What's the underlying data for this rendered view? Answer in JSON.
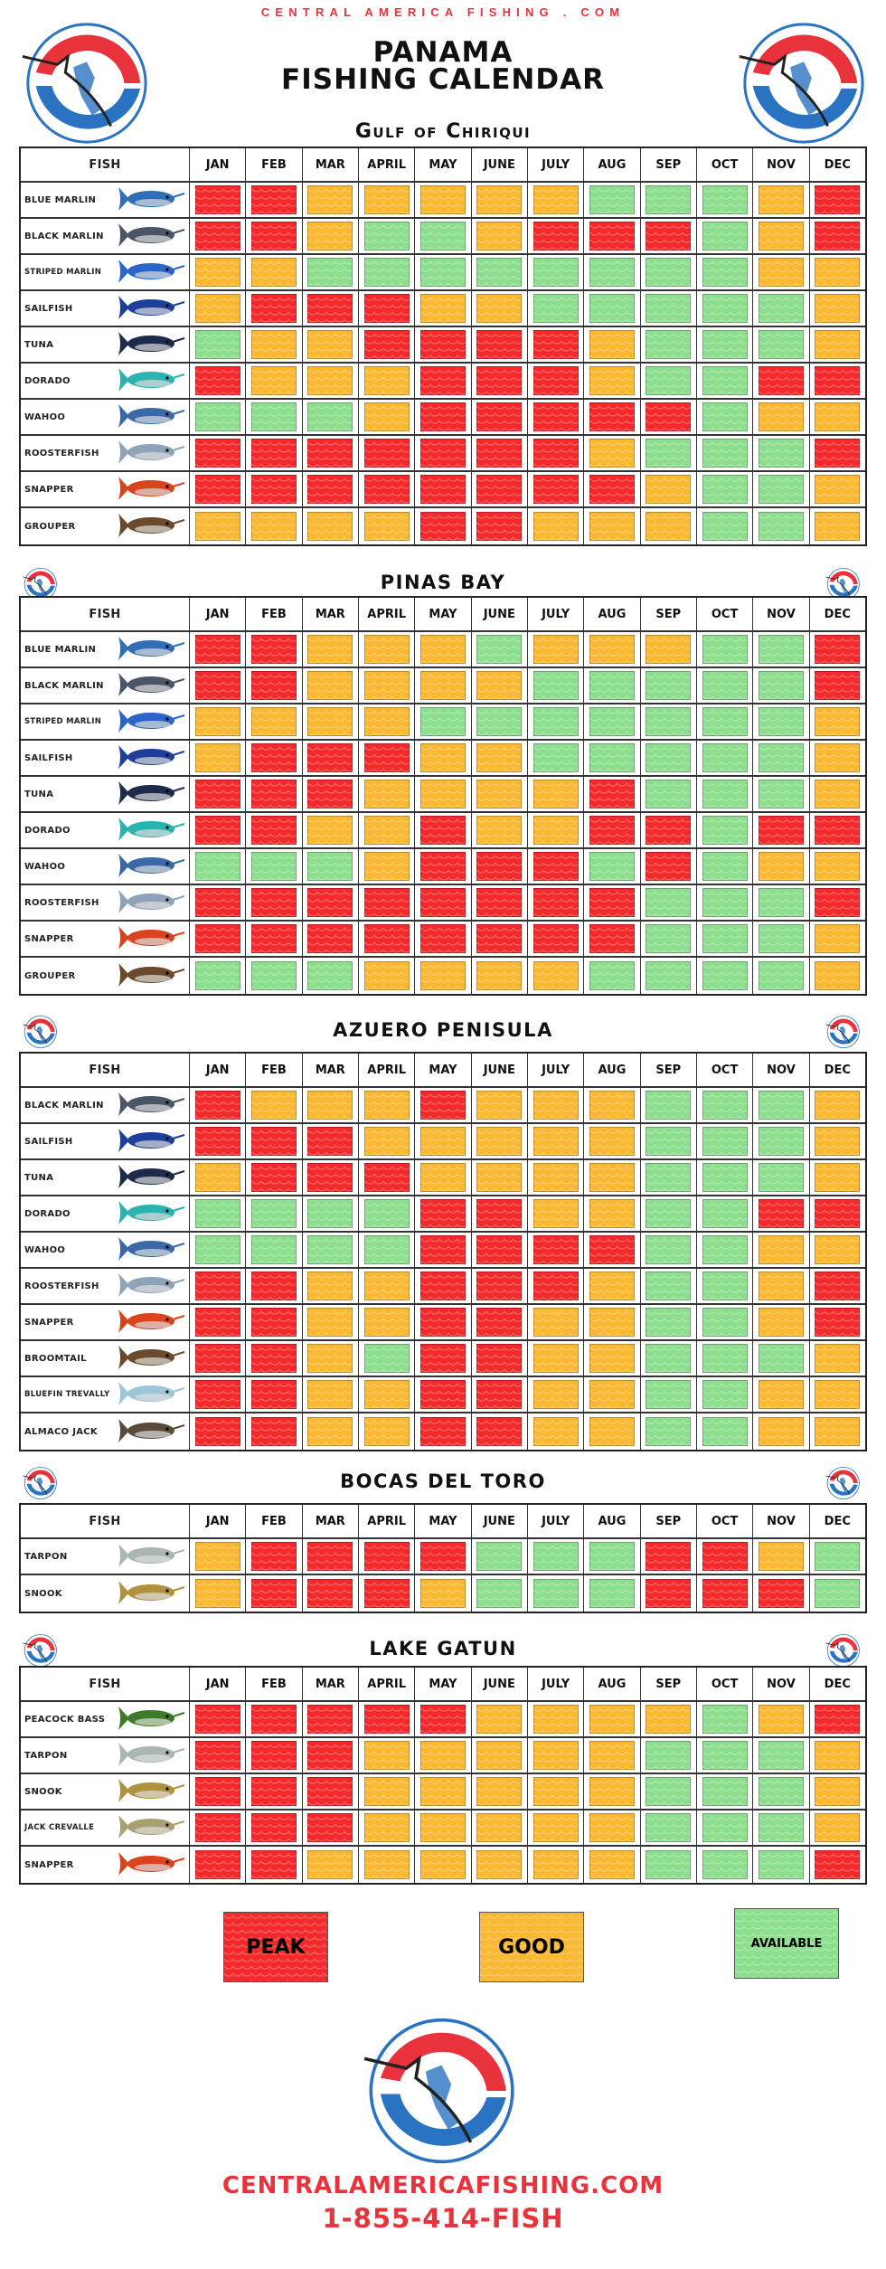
{
  "header": {
    "site": "CENTRAL AMERICA FISHING . COM",
    "title_line1": "PANAMA",
    "title_line2": "FISHING CALENDAR",
    "logo_text": "CENTRAL AMERICA FISHING"
  },
  "colors": {
    "peak": "#f3292b",
    "good": "#fbb833",
    "available": "#8ede8f",
    "brand_red": "#e8323c",
    "brand_blue": "#2a73c2"
  },
  "months": [
    "JAN",
    "FEB",
    "MAR",
    "APRIL",
    "MAY",
    "JUNE",
    "JULY",
    "AUG",
    "SEP",
    "OCT",
    "NOV",
    "DEC"
  ],
  "fish_header": "FISH",
  "fish_colors": {
    "BLUE MARLIN": "#2f6fb8",
    "BLACK MARLIN": "#4a5566",
    "STRIPED MARLIN": "#2a66c9",
    "SAILFISH": "#1e3f99",
    "TUNA": "#1d2a4a",
    "DORADO": "#2bb3b0",
    "WAHOO": "#3b69a8",
    "ROOSTERFISH": "#8fa3b8",
    "SNAPPER": "#d8451c",
    "GROUPER": "#6a4a2a",
    "BROOMTAIL": "#6a4a2a",
    "BLUEFIN TREVALLY": "#9cc6d8",
    "ALMACO JACK": "#5a4a3a",
    "TARPON": "#a9b7b0",
    "SNOOK": "#b0923e",
    "PEACOCK BASS": "#3d7a2a",
    "JACK CREVALLE": "#a8a070"
  },
  "sections": [
    {
      "title": "Gulf of Chiriqui",
      "rows": [
        {
          "fish": "BLUE MARLIN",
          "months": [
            "peak",
            "peak",
            "good",
            "good",
            "good",
            "good",
            "good",
            "available",
            "available",
            "available",
            "good",
            "peak"
          ]
        },
        {
          "fish": "BLACK MARLIN",
          "months": [
            "peak",
            "peak",
            "good",
            "available",
            "available",
            "good",
            "peak",
            "peak",
            "peak",
            "available",
            "good",
            "peak"
          ]
        },
        {
          "fish": "STRIPED MARLIN",
          "months": [
            "good",
            "good",
            "available",
            "available",
            "available",
            "available",
            "available",
            "available",
            "available",
            "available",
            "good",
            "good"
          ]
        },
        {
          "fish": "SAILFISH",
          "months": [
            "good",
            "peak",
            "peak",
            "peak",
            "good",
            "good",
            "available",
            "available",
            "available",
            "available",
            "available",
            "good"
          ]
        },
        {
          "fish": "TUNA",
          "months": [
            "available",
            "good",
            "good",
            "peak",
            "peak",
            "peak",
            "peak",
            "good",
            "available",
            "available",
            "available",
            "good"
          ]
        },
        {
          "fish": "DORADO",
          "months": [
            "peak",
            "good",
            "good",
            "good",
            "peak",
            "peak",
            "peak",
            "good",
            "available",
            "available",
            "peak",
            "peak"
          ]
        },
        {
          "fish": "WAHOO",
          "months": [
            "available",
            "available",
            "available",
            "good",
            "peak",
            "peak",
            "peak",
            "peak",
            "peak",
            "available",
            "good",
            "good"
          ]
        },
        {
          "fish": "ROOSTERFISH",
          "months": [
            "peak",
            "peak",
            "peak",
            "peak",
            "peak",
            "peak",
            "peak",
            "good",
            "available",
            "available",
            "available",
            "peak"
          ]
        },
        {
          "fish": "SNAPPER",
          "months": [
            "peak",
            "peak",
            "peak",
            "peak",
            "peak",
            "peak",
            "peak",
            "peak",
            "good",
            "available",
            "available",
            "good"
          ]
        },
        {
          "fish": "GROUPER",
          "months": [
            "good",
            "good",
            "good",
            "good",
            "peak",
            "peak",
            "good",
            "good",
            "good",
            "available",
            "available",
            "good"
          ]
        }
      ]
    },
    {
      "title": "PINAS BAY",
      "rows": [
        {
          "fish": "BLUE MARLIN",
          "months": [
            "peak",
            "peak",
            "good",
            "good",
            "good",
            "available",
            "good",
            "good",
            "good",
            "available",
            "available",
            "peak"
          ]
        },
        {
          "fish": "BLACK MARLIN",
          "months": [
            "peak",
            "peak",
            "good",
            "good",
            "good",
            "good",
            "available",
            "available",
            "available",
            "available",
            "available",
            "peak"
          ]
        },
        {
          "fish": "STRIPED MARLIN",
          "months": [
            "good",
            "good",
            "good",
            "good",
            "available",
            "available",
            "available",
            "available",
            "available",
            "available",
            "available",
            "good"
          ]
        },
        {
          "fish": "SAILFISH",
          "months": [
            "good",
            "peak",
            "peak",
            "peak",
            "good",
            "good",
            "available",
            "available",
            "available",
            "available",
            "available",
            "good"
          ]
        },
        {
          "fish": "TUNA",
          "months": [
            "peak",
            "peak",
            "peak",
            "good",
            "good",
            "good",
            "good",
            "peak",
            "available",
            "available",
            "available",
            "good"
          ]
        },
        {
          "fish": "DORADO",
          "months": [
            "peak",
            "peak",
            "good",
            "good",
            "peak",
            "good",
            "good",
            "peak",
            "peak",
            "available",
            "peak",
            "peak"
          ]
        },
        {
          "fish": "WAHOO",
          "months": [
            "available",
            "available",
            "available",
            "good",
            "peak",
            "peak",
            "peak",
            "available",
            "peak",
            "available",
            "good",
            "good"
          ]
        },
        {
          "fish": "ROOSTERFISH",
          "months": [
            "peak",
            "peak",
            "peak",
            "peak",
            "peak",
            "peak",
            "peak",
            "peak",
            "available",
            "available",
            "available",
            "peak"
          ]
        },
        {
          "fish": "SNAPPER",
          "months": [
            "peak",
            "peak",
            "peak",
            "peak",
            "peak",
            "peak",
            "peak",
            "peak",
            "available",
            "available",
            "available",
            "good"
          ]
        },
        {
          "fish": "GROUPER",
          "months": [
            "available",
            "available",
            "available",
            "good",
            "good",
            "good",
            "good",
            "available",
            "available",
            "available",
            "available",
            "good"
          ]
        }
      ]
    },
    {
      "title": "AZUERO PENISULA",
      "rows": [
        {
          "fish": "BLACK MARLIN",
          "months": [
            "peak",
            "good",
            "good",
            "good",
            "peak",
            "good",
            "good",
            "good",
            "available",
            "available",
            "available",
            "good"
          ]
        },
        {
          "fish": "SAILFISH",
          "months": [
            "peak",
            "peak",
            "peak",
            "good",
            "good",
            "good",
            "good",
            "good",
            "available",
            "available",
            "available",
            "good"
          ]
        },
        {
          "fish": "TUNA",
          "months": [
            "good",
            "peak",
            "peak",
            "peak",
            "good",
            "good",
            "good",
            "good",
            "available",
            "available",
            "available",
            "good"
          ]
        },
        {
          "fish": "DORADO",
          "months": [
            "available",
            "available",
            "available",
            "available",
            "peak",
            "peak",
            "good",
            "good",
            "available",
            "available",
            "peak",
            "peak"
          ]
        },
        {
          "fish": "WAHOO",
          "months": [
            "available",
            "available",
            "available",
            "available",
            "peak",
            "peak",
            "peak",
            "peak",
            "available",
            "available",
            "good",
            "good"
          ]
        },
        {
          "fish": "ROOSTERFISH",
          "months": [
            "peak",
            "peak",
            "good",
            "good",
            "peak",
            "peak",
            "peak",
            "good",
            "available",
            "available",
            "good",
            "peak"
          ]
        },
        {
          "fish": "SNAPPER",
          "months": [
            "peak",
            "peak",
            "good",
            "good",
            "peak",
            "peak",
            "good",
            "good",
            "available",
            "available",
            "good",
            "peak"
          ]
        },
        {
          "fish": "BROOMTAIL",
          "months": [
            "peak",
            "peak",
            "good",
            "available",
            "peak",
            "peak",
            "good",
            "good",
            "available",
            "available",
            "available",
            "good"
          ]
        },
        {
          "fish": "BLUEFIN TREVALLY",
          "months": [
            "peak",
            "peak",
            "good",
            "good",
            "peak",
            "peak",
            "good",
            "good",
            "available",
            "available",
            "good",
            "good"
          ]
        },
        {
          "fish": "ALMACO JACK",
          "months": [
            "peak",
            "peak",
            "good",
            "good",
            "peak",
            "peak",
            "good",
            "good",
            "available",
            "available",
            "good",
            "good"
          ]
        }
      ]
    },
    {
      "title": "BOCAS DEL TORO",
      "rows": [
        {
          "fish": "TARPON",
          "months": [
            "good",
            "peak",
            "peak",
            "peak",
            "peak",
            "available",
            "available",
            "available",
            "peak",
            "peak",
            "good",
            "available"
          ]
        },
        {
          "fish": "SNOOK",
          "months": [
            "good",
            "peak",
            "peak",
            "peak",
            "good",
            "available",
            "available",
            "available",
            "peak",
            "peak",
            "peak",
            "available"
          ]
        }
      ]
    },
    {
      "title": "LAKE GATUN",
      "rows": [
        {
          "fish": "PEACOCK BASS",
          "months": [
            "peak",
            "peak",
            "peak",
            "peak",
            "peak",
            "good",
            "good",
            "good",
            "good",
            "available",
            "good",
            "peak"
          ]
        },
        {
          "fish": "TARPON",
          "months": [
            "peak",
            "peak",
            "peak",
            "good",
            "good",
            "good",
            "good",
            "good",
            "available",
            "available",
            "available",
            "good"
          ]
        },
        {
          "fish": "SNOOK",
          "months": [
            "peak",
            "peak",
            "peak",
            "good",
            "good",
            "good",
            "good",
            "good",
            "available",
            "available",
            "available",
            "good"
          ]
        },
        {
          "fish": "JACK CREVALLE",
          "months": [
            "peak",
            "peak",
            "peak",
            "good",
            "good",
            "good",
            "good",
            "good",
            "available",
            "available",
            "available",
            "good"
          ]
        },
        {
          "fish": "SNAPPER",
          "months": [
            "peak",
            "peak",
            "good",
            "good",
            "good",
            "good",
            "good",
            "good",
            "available",
            "available",
            "available",
            "peak"
          ]
        }
      ]
    }
  ],
  "legend": {
    "peak": "PEAK",
    "good": "GOOD",
    "available": "AVAILABLE"
  },
  "footer": {
    "url": "CENTRALAMERICAFISHING.COM",
    "phone": "1-855-414-FISH"
  }
}
